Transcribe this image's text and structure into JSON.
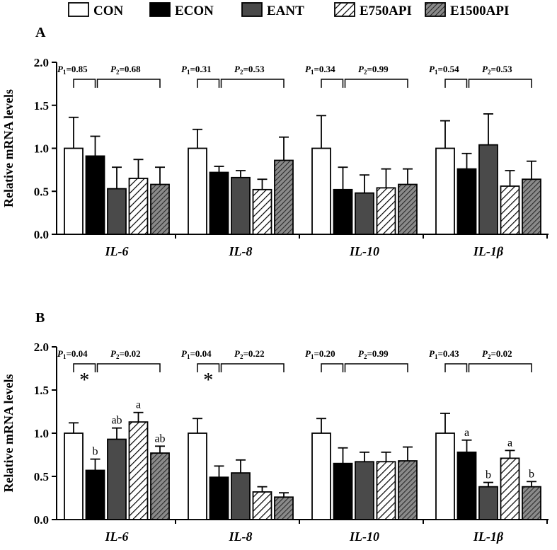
{
  "legend": [
    {
      "label": "CON",
      "fill": "white"
    },
    {
      "label": "ECON",
      "fill": "black"
    },
    {
      "label": "EANT",
      "fill": "gray"
    },
    {
      "label": "E750API",
      "fill": "hatch"
    },
    {
      "label": "E1500API",
      "fill": "dense-hatch"
    }
  ],
  "colors": {
    "black": "#000000",
    "gray": "#4a4a4a",
    "white": "#ffffff",
    "hatch_bg": "#ffffff",
    "dense_bg": "#8a8a8a"
  },
  "chart_data": [
    {
      "type": "bar",
      "panel_label": "A",
      "ylabel": "Relative mRNA levels",
      "ylim": [
        0,
        2.0
      ],
      "yticks": [
        "0.0",
        "0.5",
        "1.0",
        "1.5",
        "2.0"
      ],
      "categories": [
        "IL-6",
        "IL-8",
        "IL-10",
        "IL-1β"
      ],
      "series": [
        {
          "name": "CON",
          "values": [
            1.0,
            1.0,
            1.0,
            1.0
          ],
          "errors": [
            0.36,
            0.22,
            0.38,
            0.32
          ]
        },
        {
          "name": "ECON",
          "values": [
            0.91,
            0.72,
            0.52,
            0.76
          ],
          "errors": [
            0.23,
            0.07,
            0.26,
            0.18
          ]
        },
        {
          "name": "EANT",
          "values": [
            0.53,
            0.66,
            0.48,
            1.04
          ],
          "errors": [
            0.25,
            0.08,
            0.21,
            0.36
          ]
        },
        {
          "name": "E750API",
          "values": [
            0.65,
            0.52,
            0.54,
            0.56
          ],
          "errors": [
            0.22,
            0.12,
            0.22,
            0.18
          ]
        },
        {
          "name": "E1500API",
          "values": [
            0.58,
            0.86,
            0.58,
            0.64
          ],
          "errors": [
            0.2,
            0.27,
            0.18,
            0.21
          ]
        }
      ],
      "p_values": [
        {
          "p1": "=0.85",
          "p2": "=0.68"
        },
        {
          "p1": "=0.31",
          "p2": "=0.53"
        },
        {
          "p1": "=0.34",
          "p2": "=0.99"
        },
        {
          "p1": "=0.54",
          "p2": "=0.53"
        }
      ],
      "significance": [
        [
          "",
          "",
          "",
          "",
          ""
        ],
        [
          "",
          "",
          "",
          "",
          ""
        ],
        [
          "",
          "",
          "",
          "",
          ""
        ],
        [
          "",
          "",
          "",
          "",
          ""
        ]
      ],
      "stars": [
        "",
        "",
        "",
        ""
      ]
    },
    {
      "type": "bar",
      "panel_label": "B",
      "ylabel": "Relative mRNA levels",
      "ylim": [
        0,
        2.0
      ],
      "yticks": [
        "0.0",
        "0.5",
        "1.0",
        "1.5",
        "2.0"
      ],
      "categories": [
        "IL-6",
        "IL-8",
        "IL-10",
        "IL-1β"
      ],
      "series": [
        {
          "name": "CON",
          "values": [
            1.0,
            1.0,
            1.0,
            1.0
          ],
          "errors": [
            0.12,
            0.17,
            0.17,
            0.23
          ]
        },
        {
          "name": "ECON",
          "values": [
            0.57,
            0.49,
            0.65,
            0.78
          ],
          "errors": [
            0.13,
            0.13,
            0.18,
            0.14
          ]
        },
        {
          "name": "EANT",
          "values": [
            0.93,
            0.54,
            0.67,
            0.38
          ],
          "errors": [
            0.13,
            0.15,
            0.11,
            0.05
          ]
        },
        {
          "name": "E750API",
          "values": [
            1.13,
            0.32,
            0.67,
            0.71
          ],
          "errors": [
            0.11,
            0.06,
            0.11,
            0.09
          ]
        },
        {
          "name": "E1500API",
          "values": [
            0.77,
            0.26,
            0.68,
            0.38
          ],
          "errors": [
            0.08,
            0.05,
            0.16,
            0.06
          ]
        }
      ],
      "p_values": [
        {
          "p1": "=0.04",
          "p2": "=0.02"
        },
        {
          "p1": "=0.04",
          "p2": "=0.22"
        },
        {
          "p1": "=0.20",
          "p2": "=0.99"
        },
        {
          "p1": "=0.43",
          "p2": "=0.02"
        }
      ],
      "significance": [
        [
          "",
          "b",
          "ab",
          "a",
          "ab"
        ],
        [
          "",
          "",
          "",
          "",
          ""
        ],
        [
          "",
          "",
          "",
          "",
          ""
        ],
        [
          "",
          "a",
          "b",
          "a",
          "b"
        ]
      ],
      "stars": [
        "*",
        "*",
        "",
        ""
      ]
    }
  ]
}
